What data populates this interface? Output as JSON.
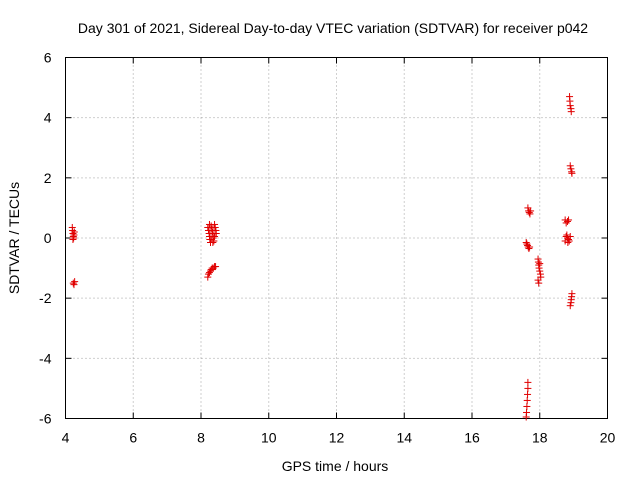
{
  "chart_data": {
    "type": "scatter",
    "title": "Day 301 of 2021, Sidereal Day-to-day VTEC variation (SDTVAR) for receiver p042",
    "xlabel": "GPS time / hours",
    "ylabel": "SDTVAR / TECUs",
    "xlim": [
      4,
      20
    ],
    "ylim": [
      -6,
      6
    ],
    "xticks": [
      "4",
      "6",
      "8",
      "10",
      "12",
      "14",
      "16",
      "18",
      "20"
    ],
    "yticks": [
      "-6",
      "-4",
      "-2",
      "0",
      "2",
      "4",
      "6"
    ],
    "grid": true,
    "marker": "plus",
    "marker_color": "#e00000",
    "series": [
      {
        "name": "SDTVAR",
        "points": [
          [
            4.2,
            0.35
          ],
          [
            4.21,
            0.25
          ],
          [
            4.22,
            0.15
          ],
          [
            4.23,
            0.05
          ],
          [
            4.24,
            0.0
          ],
          [
            4.25,
            0.1
          ],
          [
            4.26,
            0.2
          ],
          [
            4.22,
            -0.05
          ],
          [
            4.23,
            -1.5
          ],
          [
            4.25,
            -1.55
          ],
          [
            4.27,
            -1.45
          ],
          [
            8.2,
            0.35
          ],
          [
            8.22,
            0.25
          ],
          [
            8.24,
            0.15
          ],
          [
            8.25,
            0.05
          ],
          [
            8.26,
            -0.05
          ],
          [
            8.28,
            -0.15
          ],
          [
            8.3,
            0.4
          ],
          [
            8.32,
            0.3
          ],
          [
            8.34,
            0.2
          ],
          [
            8.35,
            0.1
          ],
          [
            8.36,
            0.0
          ],
          [
            8.38,
            -0.1
          ],
          [
            8.4,
            0.45
          ],
          [
            8.42,
            0.35
          ],
          [
            8.44,
            0.25
          ],
          [
            8.45,
            0.15
          ],
          [
            8.3,
            -0.05
          ],
          [
            8.35,
            -0.15
          ],
          [
            8.25,
            0.45
          ],
          [
            8.4,
            0.05
          ],
          [
            8.2,
            -1.3
          ],
          [
            8.22,
            -1.2
          ],
          [
            8.25,
            -1.15
          ],
          [
            8.28,
            -1.1
          ],
          [
            8.3,
            -1.05
          ],
          [
            8.33,
            -1.0
          ],
          [
            8.36,
            -1.0
          ],
          [
            8.4,
            -0.95
          ],
          [
            8.43,
            -0.95
          ],
          [
            17.65,
            1.0
          ],
          [
            17.67,
            0.9
          ],
          [
            17.69,
            0.85
          ],
          [
            17.71,
            0.8
          ],
          [
            17.73,
            0.9
          ],
          [
            17.6,
            -0.15
          ],
          [
            17.62,
            -0.2
          ],
          [
            17.64,
            -0.25
          ],
          [
            17.66,
            -0.3
          ],
          [
            17.68,
            -0.35
          ],
          [
            17.7,
            -0.3
          ],
          [
            17.65,
            -4.8
          ],
          [
            17.65,
            -5.0
          ],
          [
            17.64,
            -5.2
          ],
          [
            17.63,
            -5.4
          ],
          [
            17.62,
            -5.6
          ],
          [
            17.61,
            -5.8
          ],
          [
            17.6,
            -5.95
          ],
          [
            17.95,
            -0.7
          ],
          [
            17.96,
            -0.8
          ],
          [
            17.97,
            -0.9
          ],
          [
            17.98,
            -1.0
          ],
          [
            18.0,
            -1.1
          ],
          [
            18.02,
            -1.2
          ],
          [
            18.03,
            -1.3
          ],
          [
            17.95,
            -1.4
          ],
          [
            17.97,
            -1.5
          ],
          [
            18.0,
            -0.85
          ],
          [
            18.75,
            0.6
          ],
          [
            18.78,
            0.5
          ],
          [
            18.82,
            0.55
          ],
          [
            18.85,
            0.6
          ],
          [
            18.8,
            0.1
          ],
          [
            18.82,
            0.0
          ],
          [
            18.85,
            -0.05
          ],
          [
            18.87,
            -0.1
          ],
          [
            18.78,
            0.05
          ],
          [
            18.9,
            0.05
          ],
          [
            18.75,
            -0.1
          ],
          [
            18.83,
            -0.15
          ],
          [
            18.88,
            4.7
          ],
          [
            18.89,
            4.55
          ],
          [
            18.9,
            4.4
          ],
          [
            18.92,
            4.3
          ],
          [
            18.93,
            4.2
          ],
          [
            18.9,
            2.4
          ],
          [
            18.92,
            2.3
          ],
          [
            18.94,
            2.2
          ],
          [
            18.95,
            2.15
          ],
          [
            18.95,
            -1.85
          ],
          [
            18.94,
            -1.95
          ],
          [
            18.93,
            -2.05
          ],
          [
            18.92,
            -2.15
          ],
          [
            18.9,
            -2.25
          ]
        ]
      }
    ]
  }
}
